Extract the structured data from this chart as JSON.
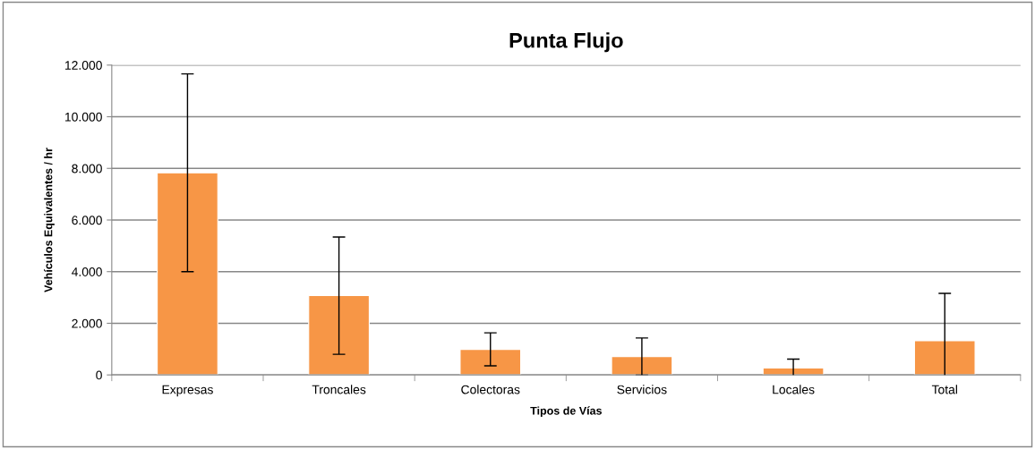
{
  "chart_data": {
    "type": "bar",
    "title": "Punta Flujo",
    "xlabel": "Tipos de Vías",
    "ylabel": "Vehículos Equivalentes / hr",
    "categories": [
      "Expresas",
      "Troncales",
      "Colectoras",
      "Servicios",
      "Locales",
      "Total"
    ],
    "values": [
      7830,
      3070,
      990,
      710,
      270,
      1320
    ],
    "errors": [
      3830,
      2270,
      640,
      720,
      340,
      1840
    ],
    "color": "#f79646",
    "ylim": [
      0,
      12000
    ],
    "yticks": [
      {
        "value": 0,
        "label": "0"
      },
      {
        "value": 2000,
        "label": "2.000"
      },
      {
        "value": 4000,
        "label": "4.000"
      },
      {
        "value": 6000,
        "label": "6.000"
      },
      {
        "value": 8000,
        "label": "8.000"
      },
      {
        "value": 10000,
        "label": "10.000"
      },
      {
        "value": 12000,
        "label": "12.000"
      }
    ],
    "grid": "y",
    "legend": false
  }
}
